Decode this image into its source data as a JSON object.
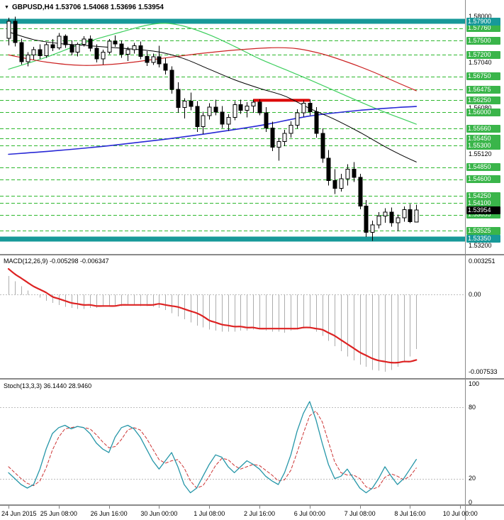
{
  "window": {
    "symbol_marker": "▼",
    "title": "GBPUSD,H4 1.53706 1.54068 1.53696 1.53954"
  },
  "price_axis": {
    "plain_ticks": [
      1.58,
      1.5704,
      1.5608,
      1.5512,
      1.5416,
      1.532
    ],
    "current_price": 1.53954
  },
  "indicators": {
    "macd": {
      "label": "MACD(12,26,9) -0.005298 -0.006347"
    },
    "stoch": {
      "label": "Stoch(13,3,3) 36.1440 28.9460"
    }
  },
  "colors": {
    "band": "#179999",
    "level_line": "#2eb82e",
    "level_badge": "#3ab54a",
    "current_badge": "#000000",
    "candle_up": "#ffffff",
    "candle_down": "#000000",
    "candle_outline": "#000000",
    "ma_black": "#000000",
    "ma_red": "#cc2222",
    "ma_green": "#3fcf5f",
    "ma_blue": "#2929d6",
    "resistance": "#dd0000",
    "macd_hist": "#adadad",
    "macd_signal": "#dd2222",
    "stoch_main": "#2596a8",
    "stoch_signal": "#cc3333",
    "grid": "#bdbdbd",
    "divider": "#8a8a8a",
    "axis_text": "#000000"
  },
  "chart_data": [
    {
      "type": "candlestick",
      "symbol": "GBPUSD",
      "timeframe": "H4",
      "ylim": [
        1.5305,
        1.582
      ],
      "ohlc": [
        [
          1.5755,
          1.5798,
          1.574,
          1.579
        ],
        [
          1.579,
          1.58,
          1.5738,
          1.5746
        ],
        [
          1.5746,
          1.5754,
          1.57,
          1.5706
        ],
        [
          1.5706,
          1.5726,
          1.5696,
          1.572
        ],
        [
          1.572,
          1.5737,
          1.571,
          1.5731
        ],
        [
          1.5731,
          1.5742,
          1.5712,
          1.5718
        ],
        [
          1.5718,
          1.5746,
          1.5714,
          1.5741
        ],
        [
          1.5741,
          1.5753,
          1.5728,
          1.5735
        ],
        [
          1.5735,
          1.5766,
          1.5731,
          1.5759
        ],
        [
          1.5759,
          1.5763,
          1.5735,
          1.5741
        ],
        [
          1.5741,
          1.575,
          1.5719,
          1.5726
        ],
        [
          1.5726,
          1.5746,
          1.5717,
          1.5742
        ],
        [
          1.5742,
          1.5759,
          1.5738,
          1.5753
        ],
        [
          1.5753,
          1.5761,
          1.5727,
          1.5734
        ],
        [
          1.5734,
          1.5742,
          1.5704,
          1.5712
        ],
        [
          1.5712,
          1.5731,
          1.57,
          1.5726
        ],
        [
          1.5726,
          1.5753,
          1.5721,
          1.5749
        ],
        [
          1.5749,
          1.5761,
          1.5737,
          1.5743
        ],
        [
          1.5743,
          1.575,
          1.5714,
          1.5721
        ],
        [
          1.5721,
          1.5737,
          1.5707,
          1.5731
        ],
        [
          1.5731,
          1.5745,
          1.5723,
          1.5739
        ],
        [
          1.5739,
          1.5748,
          1.5711,
          1.5717
        ],
        [
          1.5717,
          1.5728,
          1.5697,
          1.5704
        ],
        [
          1.5704,
          1.5723,
          1.5699,
          1.5716
        ],
        [
          1.5716,
          1.5739,
          1.5694,
          1.5701
        ],
        [
          1.5701,
          1.5713,
          1.5679,
          1.5688
        ],
        [
          1.5688,
          1.5696,
          1.5639,
          1.5648
        ],
        [
          1.5648,
          1.5663,
          1.5599,
          1.561
        ],
        [
          1.561,
          1.5629,
          1.5587,
          1.5623
        ],
        [
          1.5623,
          1.5641,
          1.5604,
          1.5612
        ],
        [
          1.5612,
          1.5623,
          1.5559,
          1.557
        ],
        [
          1.557,
          1.5601,
          1.5554,
          1.5593
        ],
        [
          1.5593,
          1.5619,
          1.5585,
          1.5611
        ],
        [
          1.5611,
          1.5626,
          1.5594,
          1.56
        ],
        [
          1.56,
          1.5613,
          1.5567,
          1.5575
        ],
        [
          1.5575,
          1.5596,
          1.5561,
          1.5589
        ],
        [
          1.5589,
          1.5623,
          1.5583,
          1.5616
        ],
        [
          1.5616,
          1.5626,
          1.5597,
          1.5604
        ],
        [
          1.5604,
          1.5621,
          1.5589,
          1.5613
        ],
        [
          1.5613,
          1.5626,
          1.5599,
          1.5621
        ],
        [
          1.5621,
          1.5627,
          1.5594,
          1.5599
        ],
        [
          1.5599,
          1.5611,
          1.5559,
          1.5567
        ],
        [
          1.5567,
          1.558,
          1.5519,
          1.5527
        ],
        [
          1.5527,
          1.5546,
          1.5499,
          1.5539
        ],
        [
          1.5539,
          1.5563,
          1.5529,
          1.5556
        ],
        [
          1.5556,
          1.5581,
          1.5547,
          1.5573
        ],
        [
          1.5573,
          1.5606,
          1.5566,
          1.5599
        ],
        [
          1.5599,
          1.5625,
          1.5591,
          1.5619
        ],
        [
          1.5619,
          1.5627,
          1.5594,
          1.5601
        ],
        [
          1.5601,
          1.5611,
          1.5547,
          1.5556
        ],
        [
          1.5556,
          1.5566,
          1.5494,
          1.5504
        ],
        [
          1.5504,
          1.5521,
          1.5447,
          1.5457
        ],
        [
          1.5457,
          1.5481,
          1.5429,
          1.5441
        ],
        [
          1.5441,
          1.5471,
          1.5434,
          1.5461
        ],
        [
          1.5461,
          1.5491,
          1.5447,
          1.5481
        ],
        [
          1.5481,
          1.5496,
          1.5454,
          1.5464
        ],
        [
          1.5464,
          1.5471,
          1.5397,
          1.5404
        ],
        [
          1.5404,
          1.5416,
          1.5339,
          1.5349
        ],
        [
          1.5349,
          1.5373,
          1.5331,
          1.5364
        ],
        [
          1.5364,
          1.5391,
          1.5357,
          1.5383
        ],
        [
          1.5383,
          1.5399,
          1.5369,
          1.5391
        ],
        [
          1.5391,
          1.5401,
          1.5361,
          1.5369
        ],
        [
          1.5369,
          1.5386,
          1.5351,
          1.5379
        ],
        [
          1.5379,
          1.5403,
          1.5371,
          1.5396
        ],
        [
          1.5396,
          1.5408,
          1.5368,
          1.5371
        ],
        [
          1.53706,
          1.54068,
          1.53696,
          1.53954
        ]
      ],
      "bands": [
        1.579,
        1.5335
      ],
      "levels": [
        1.5776,
        1.575,
        1.572,
        1.5675,
        1.56475,
        1.5625,
        1.56,
        1.5566,
        1.5545,
        1.553,
        1.5485,
        1.546,
        1.5425,
        1.541,
        1.53855,
        1.53525
      ],
      "resistance": {
        "price": 1.5625,
        "from_bar": 39,
        "to_bar": 48
      },
      "moving_averages": [
        {
          "name": "ma-green",
          "color_key": "ma_green",
          "points": [
            [
              0,
              1.569
            ],
            [
              6,
              1.5715
            ],
            [
              12,
              1.5745
            ],
            [
              18,
              1.5768
            ],
            [
              22,
              1.5782
            ],
            [
              25,
              1.5786
            ],
            [
              28,
              1.578
            ],
            [
              32,
              1.5762
            ],
            [
              36,
              1.5738
            ],
            [
              40,
              1.5712
            ],
            [
              44,
              1.569
            ],
            [
              48,
              1.5668
            ],
            [
              52,
              1.5645
            ],
            [
              56,
              1.5622
            ],
            [
              60,
              1.56
            ],
            [
              63,
              1.5585
            ],
            [
              65,
              1.5575
            ]
          ]
        },
        {
          "name": "ma-red",
          "color_key": "ma_red",
          "points": [
            [
              0,
              1.572
            ],
            [
              6,
              1.5705
            ],
            [
              12,
              1.5698
            ],
            [
              18,
              1.5702
            ],
            [
              24,
              1.5712
            ],
            [
              30,
              1.5722
            ],
            [
              36,
              1.573
            ],
            [
              42,
              1.5735
            ],
            [
              46,
              1.5733
            ],
            [
              50,
              1.5722
            ],
            [
              54,
              1.5705
            ],
            [
              58,
              1.5685
            ],
            [
              62,
              1.5662
            ],
            [
              65,
              1.5645
            ]
          ]
        },
        {
          "name": "ma-blue",
          "color_key": "ma_blue",
          "points": [
            [
              0,
              1.5512
            ],
            [
              8,
              1.552
            ],
            [
              16,
              1.553
            ],
            [
              24,
              1.5542
            ],
            [
              32,
              1.5556
            ],
            [
              40,
              1.5572
            ],
            [
              48,
              1.5592
            ],
            [
              56,
              1.5604
            ],
            [
              62,
              1.561
            ],
            [
              65,
              1.5612
            ]
          ]
        },
        {
          "name": "ma-black",
          "color_key": "ma_black",
          "points": [
            [
              0,
              1.5768
            ],
            [
              4,
              1.5752
            ],
            [
              8,
              1.5744
            ],
            [
              12,
              1.574
            ],
            [
              16,
              1.5736
            ],
            [
              20,
              1.5732
            ],
            [
              24,
              1.5726
            ],
            [
              28,
              1.5712
            ],
            [
              32,
              1.569
            ],
            [
              36,
              1.5668
            ],
            [
              40,
              1.565
            ],
            [
              44,
              1.5634
            ],
            [
              48,
              1.5608
            ],
            [
              52,
              1.5585
            ],
            [
              56,
              1.5558
            ],
            [
              60,
              1.5528
            ],
            [
              63,
              1.5508
            ],
            [
              65,
              1.5496
            ]
          ]
        }
      ],
      "time_labels": [
        {
          "text": "24 Jun 2015",
          "bar": 0
        },
        {
          "text": "25 Jun 08:00",
          "bar": 8
        },
        {
          "text": "26 Jun 16:00",
          "bar": 16
        },
        {
          "text": "30 Jun 00:00",
          "bar": 24
        },
        {
          "text": "1 Jul 08:00",
          "bar": 32
        },
        {
          "text": "2 Jul 16:00",
          "bar": 40
        },
        {
          "text": "6 Jul 00:00",
          "bar": 48
        },
        {
          "text": "7 Jul 08:00",
          "bar": 56
        },
        {
          "text": "8 Jul 16:00",
          "bar": 64
        },
        {
          "text": "10 Jul 00:00",
          "bar": 72
        }
      ]
    },
    {
      "type": "bar",
      "name": "MACD",
      "params": "12,26,9",
      "current_values": [
        -0.005298,
        -0.006347
      ],
      "ylim": [
        -0.0079,
        0.0036
      ],
      "axis_labels": [
        {
          "text": "0.003251",
          "value": 0.003251
        },
        {
          "text": "0.00",
          "value": 0
        },
        {
          "text": "-0.007533",
          "value": -0.007533
        }
      ],
      "histogram": [
        0.0018,
        0.0013,
        0.0008,
        0.0004,
        0.0,
        -0.0003,
        -0.0006,
        -0.0008,
        -0.001,
        -0.0012,
        -0.0013,
        -0.0014,
        -0.0014,
        -0.0013,
        -0.0013,
        -0.0012,
        -0.0012,
        -0.0011,
        -0.0011,
        -0.001,
        -0.001,
        -0.0011,
        -0.0011,
        -0.0012,
        -0.0013,
        -0.0015,
        -0.0018,
        -0.0021,
        -0.0024,
        -0.0027,
        -0.003,
        -0.0032,
        -0.0034,
        -0.0035,
        -0.0036,
        -0.0036,
        -0.0036,
        -0.0035,
        -0.0035,
        -0.0034,
        -0.0034,
        -0.0035,
        -0.0036,
        -0.0036,
        -0.0037,
        -0.0035,
        -0.0034,
        -0.0033,
        -0.0032,
        -0.0036,
        -0.004,
        -0.0045,
        -0.005,
        -0.0055,
        -0.006,
        -0.0064,
        -0.0068,
        -0.007,
        -0.0073,
        -0.0074,
        -0.0075,
        -0.0073,
        -0.007,
        -0.0065,
        -0.006,
        -0.005298
      ],
      "signal": [
        0.0025,
        0.002,
        0.0016,
        0.0012,
        0.0008,
        0.0005,
        0.0002,
        -0.0002,
        -0.0004,
        -0.0006,
        -0.0008,
        -0.0009,
        -0.001,
        -0.001,
        -0.0011,
        -0.0011,
        -0.0011,
        -0.0011,
        -0.001,
        -0.001,
        -0.001,
        -0.001,
        -0.001,
        -0.001,
        -0.0009,
        -0.001,
        -0.0011,
        -0.0012,
        -0.0014,
        -0.0016,
        -0.0018,
        -0.0021,
        -0.0025,
        -0.0027,
        -0.0029,
        -0.003,
        -0.0031,
        -0.0031,
        -0.0032,
        -0.0032,
        -0.0033,
        -0.0033,
        -0.0033,
        -0.0033,
        -0.0033,
        -0.0033,
        -0.0033,
        -0.0032,
        -0.0032,
        -0.0033,
        -0.0034,
        -0.0037,
        -0.004,
        -0.0044,
        -0.0048,
        -0.0052,
        -0.0056,
        -0.0059,
        -0.0062,
        -0.0064,
        -0.0065,
        -0.0066,
        -0.0066,
        -0.0065,
        -0.0065,
        -0.006347
      ]
    },
    {
      "type": "line",
      "name": "Stochastic",
      "params": "13,3,3",
      "current_values": [
        36.144,
        28.946
      ],
      "ylim": [
        0,
        100
      ],
      "grid_levels": [
        80,
        20
      ],
      "axis_labels": [
        {
          "text": "100",
          "value": 100
        },
        {
          "text": "80",
          "value": 80
        },
        {
          "text": "20",
          "value": 20
        },
        {
          "text": "0",
          "value": 0
        }
      ],
      "main": [
        25,
        20,
        15,
        12,
        15,
        28,
        45,
        58,
        63,
        65,
        62,
        64,
        63,
        58,
        50,
        45,
        42,
        55,
        63,
        65,
        62,
        55,
        45,
        35,
        28,
        35,
        42,
        30,
        15,
        8,
        12,
        22,
        32,
        40,
        38,
        30,
        25,
        30,
        35,
        32,
        28,
        22,
        18,
        15,
        25,
        40,
        60,
        75,
        85,
        70,
        50,
        32,
        20,
        22,
        28,
        20,
        12,
        8,
        12,
        20,
        30,
        22,
        15,
        20,
        28,
        36.144
      ],
      "signal": [
        30,
        25,
        20,
        16,
        14,
        18,
        29,
        44,
        55,
        62,
        63,
        64,
        63,
        62,
        57,
        51,
        46,
        47,
        53,
        61,
        63,
        61,
        54,
        45,
        36,
        33,
        35,
        36,
        29,
        18,
        12,
        14,
        22,
        31,
        37,
        36,
        31,
        28,
        30,
        32,
        31,
        27,
        23,
        18,
        19,
        27,
        42,
        58,
        73,
        77,
        68,
        51,
        34,
        25,
        23,
        23,
        20,
        13,
        11,
        13,
        21,
        24,
        22,
        19,
        22,
        28.946
      ]
    }
  ]
}
